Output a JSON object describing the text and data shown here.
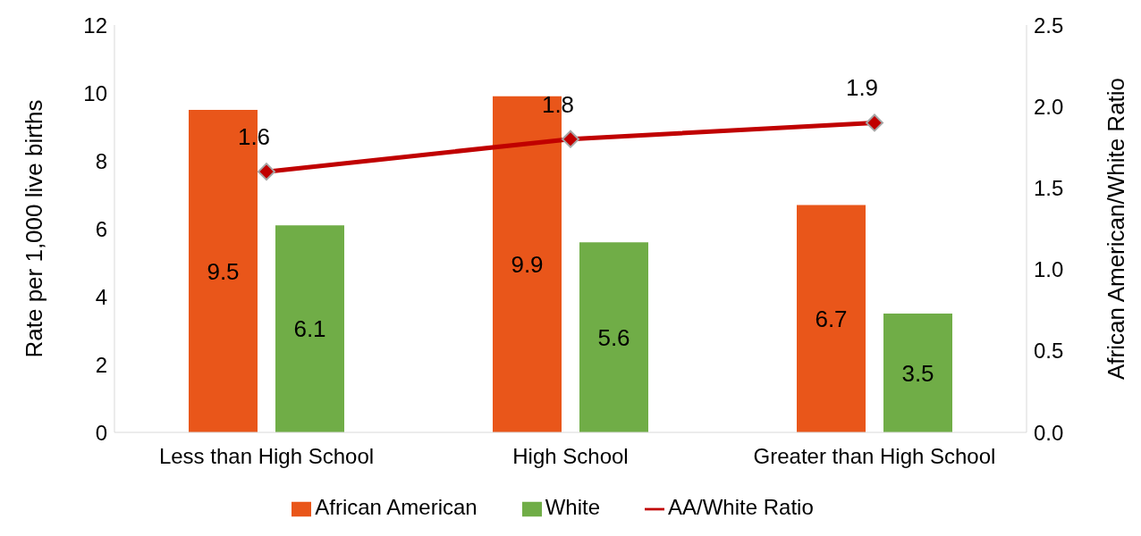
{
  "chart_data": {
    "type": "bar",
    "categories": [
      "Less than High School",
      "High School",
      "Greater than High School"
    ],
    "ylabel": "Rate per 1,000 live births",
    "y2label": "African American/White Ratio",
    "ylim": [
      0,
      12
    ],
    "yticks": [
      0,
      2,
      4,
      6,
      8,
      10,
      12
    ],
    "y2lim": [
      0,
      2.5
    ],
    "y2ticks": [
      {
        "value": 0,
        "label": "0.0"
      },
      {
        "value": 0.5,
        "label": "0.5"
      },
      {
        "value": 1,
        "label": "1.0"
      },
      {
        "value": 1.5,
        "label": "1.5"
      },
      {
        "value": 2,
        "label": "2.0"
      },
      {
        "value": 2.5,
        "label": "2.5"
      }
    ],
    "series": [
      {
        "name": "African American",
        "color": "#e9561a",
        "values": [
          9.5,
          9.9,
          6.7
        ]
      },
      {
        "name": "White",
        "color": "#70ad47",
        "values": [
          6.1,
          5.6,
          3.5
        ]
      },
      {
        "name": "AA/White Ratio",
        "type": "line",
        "axis": "y2",
        "color": "#c00000",
        "values": [
          1.6,
          1.8,
          1.9
        ]
      }
    ],
    "marker": "diamond",
    "line_style": "solid",
    "data_labels": true,
    "grid": false,
    "legend": "bottom"
  }
}
